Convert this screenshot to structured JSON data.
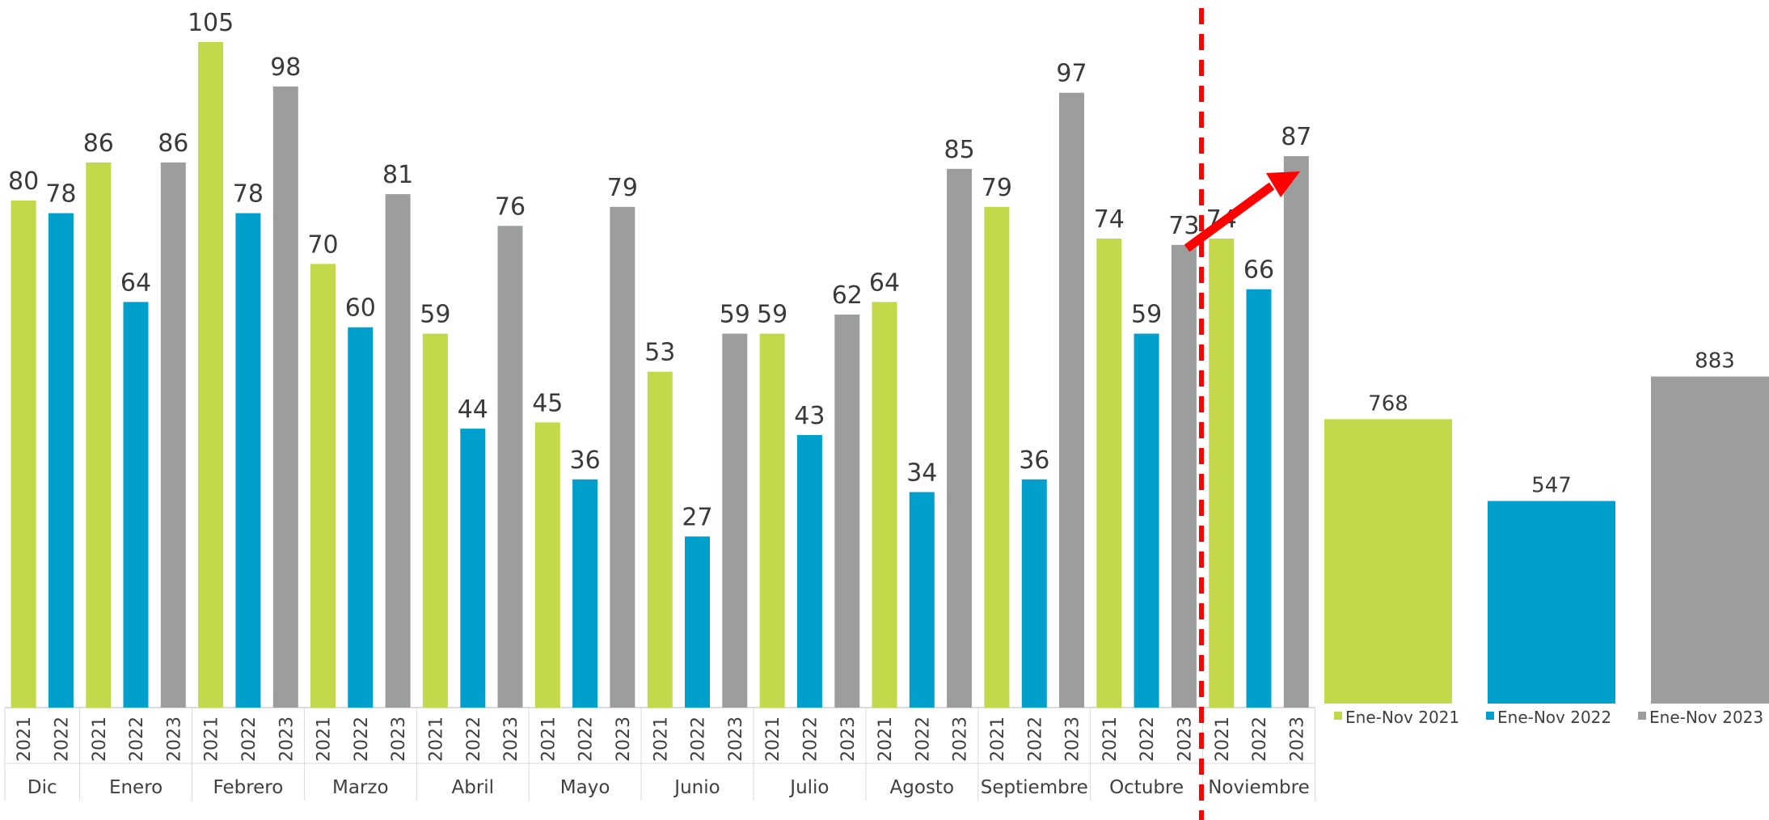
{
  "chart_data": [
    {
      "type": "bar",
      "title": "",
      "xlabel": "",
      "ylabel": "",
      "ylim": [
        0,
        110
      ],
      "grid": false,
      "groups": [
        {
          "month": "Dic",
          "years": [
            "2021",
            "2022"
          ],
          "values": [
            80,
            78
          ]
        },
        {
          "month": "Enero",
          "years": [
            "2021",
            "2022",
            "2023"
          ],
          "values": [
            86,
            64,
            86
          ]
        },
        {
          "month": "Febrero",
          "years": [
            "2021",
            "2022",
            "2023"
          ],
          "values": [
            105,
            78,
            98
          ]
        },
        {
          "month": "Marzo",
          "years": [
            "2021",
            "2022",
            "2023"
          ],
          "values": [
            70,
            60,
            81
          ]
        },
        {
          "month": "Abril",
          "years": [
            "2021",
            "2022",
            "2023"
          ],
          "values": [
            59,
            44,
            76
          ]
        },
        {
          "month": "Mayo",
          "years": [
            "2021",
            "2022",
            "2023"
          ],
          "values": [
            45,
            36,
            79
          ]
        },
        {
          "month": "Junio",
          "years": [
            "2021",
            "2022",
            "2023"
          ],
          "values": [
            53,
            27,
            59
          ]
        },
        {
          "month": "Julio",
          "years": [
            "2021",
            "2022",
            "2023"
          ],
          "values": [
            59,
            43,
            62
          ]
        },
        {
          "month": "Agosto",
          "years": [
            "2021",
            "2022",
            "2023"
          ],
          "values": [
            64,
            34,
            85
          ]
        },
        {
          "month": "Septiembre",
          "years": [
            "2021",
            "2022",
            "2023"
          ],
          "values": [
            79,
            36,
            97
          ]
        },
        {
          "month": "Octubre",
          "years": [
            "2021",
            "2022",
            "2023"
          ],
          "values": [
            74,
            59,
            73
          ]
        },
        {
          "month": "Noviembre",
          "years": [
            "2021",
            "2022",
            "2023"
          ],
          "values": [
            74,
            66,
            87
          ]
        }
      ],
      "year_colors": {
        "2021": "#c3d84a",
        "2022": "#009fcc",
        "2023": "#9c9e9d"
      },
      "annotation": {
        "type": "dashed-vertical-line-and-arrow",
        "color": "#ff0000",
        "from": "Octubre 2023",
        "to": "Noviembre 2023"
      }
    },
    {
      "type": "bar",
      "title": "",
      "ylim": [
        0,
        1100
      ],
      "categories": [
        "Ene-Nov 2021",
        "Ene-Nov 2022",
        "Ene-Nov 2023"
      ],
      "values": [
        768,
        547,
        883
      ],
      "colors": [
        "#c3d84a",
        "#009fcc",
        "#9c9e9d"
      ],
      "legend_position": "bottom"
    }
  ]
}
